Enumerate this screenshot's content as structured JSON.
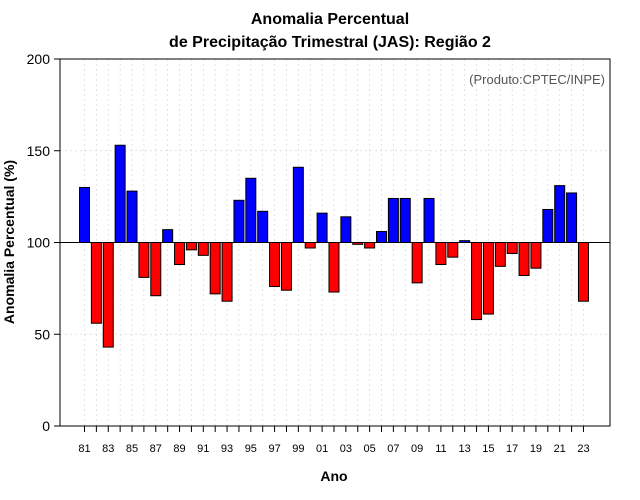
{
  "chart_data": {
    "type": "bar",
    "title_line1": "Anomalia Percentual",
    "title_line2": "de Precipitação Trimestral (JAS): Região 2",
    "xlabel": "Ano",
    "ylabel": "Anomalia Percentual (%)",
    "credit": "(Produto:CPTEC/INPE)",
    "baseline": 100,
    "ylim": [
      0,
      200
    ],
    "yticks": [
      0,
      50,
      100,
      150,
      200
    ],
    "grid": true,
    "colors": {
      "above": "#0000ff",
      "below": "#ff0000",
      "edge": "#000000",
      "grid": "#d8d8d8"
    },
    "categories": [
      "81",
      "82",
      "83",
      "84",
      "85",
      "86",
      "87",
      "88",
      "89",
      "90",
      "91",
      "92",
      "93",
      "94",
      "95",
      "96",
      "97",
      "98",
      "99",
      "00",
      "01",
      "02",
      "03",
      "04",
      "05",
      "06",
      "07",
      "08",
      "09",
      "10",
      "11",
      "12",
      "13",
      "14",
      "15",
      "16",
      "17",
      "18",
      "19",
      "20",
      "21",
      "22",
      "23"
    ],
    "xtick_labels": [
      "81",
      "83",
      "85",
      "87",
      "89",
      "91",
      "93",
      "95",
      "97",
      "99",
      "01",
      "03",
      "05",
      "07",
      "09",
      "11",
      "13",
      "15",
      "17",
      "19",
      "21",
      "23"
    ],
    "values": [
      130,
      56,
      43,
      153,
      128,
      81,
      71,
      107,
      88,
      96,
      93,
      72,
      68,
      123,
      135,
      117,
      76,
      74,
      141,
      97,
      116,
      73,
      114,
      99,
      97,
      106,
      124,
      124,
      78,
      124,
      88,
      92,
      101,
      58,
      61,
      87,
      94,
      82,
      86,
      118,
      131,
      127,
      68
    ]
  }
}
